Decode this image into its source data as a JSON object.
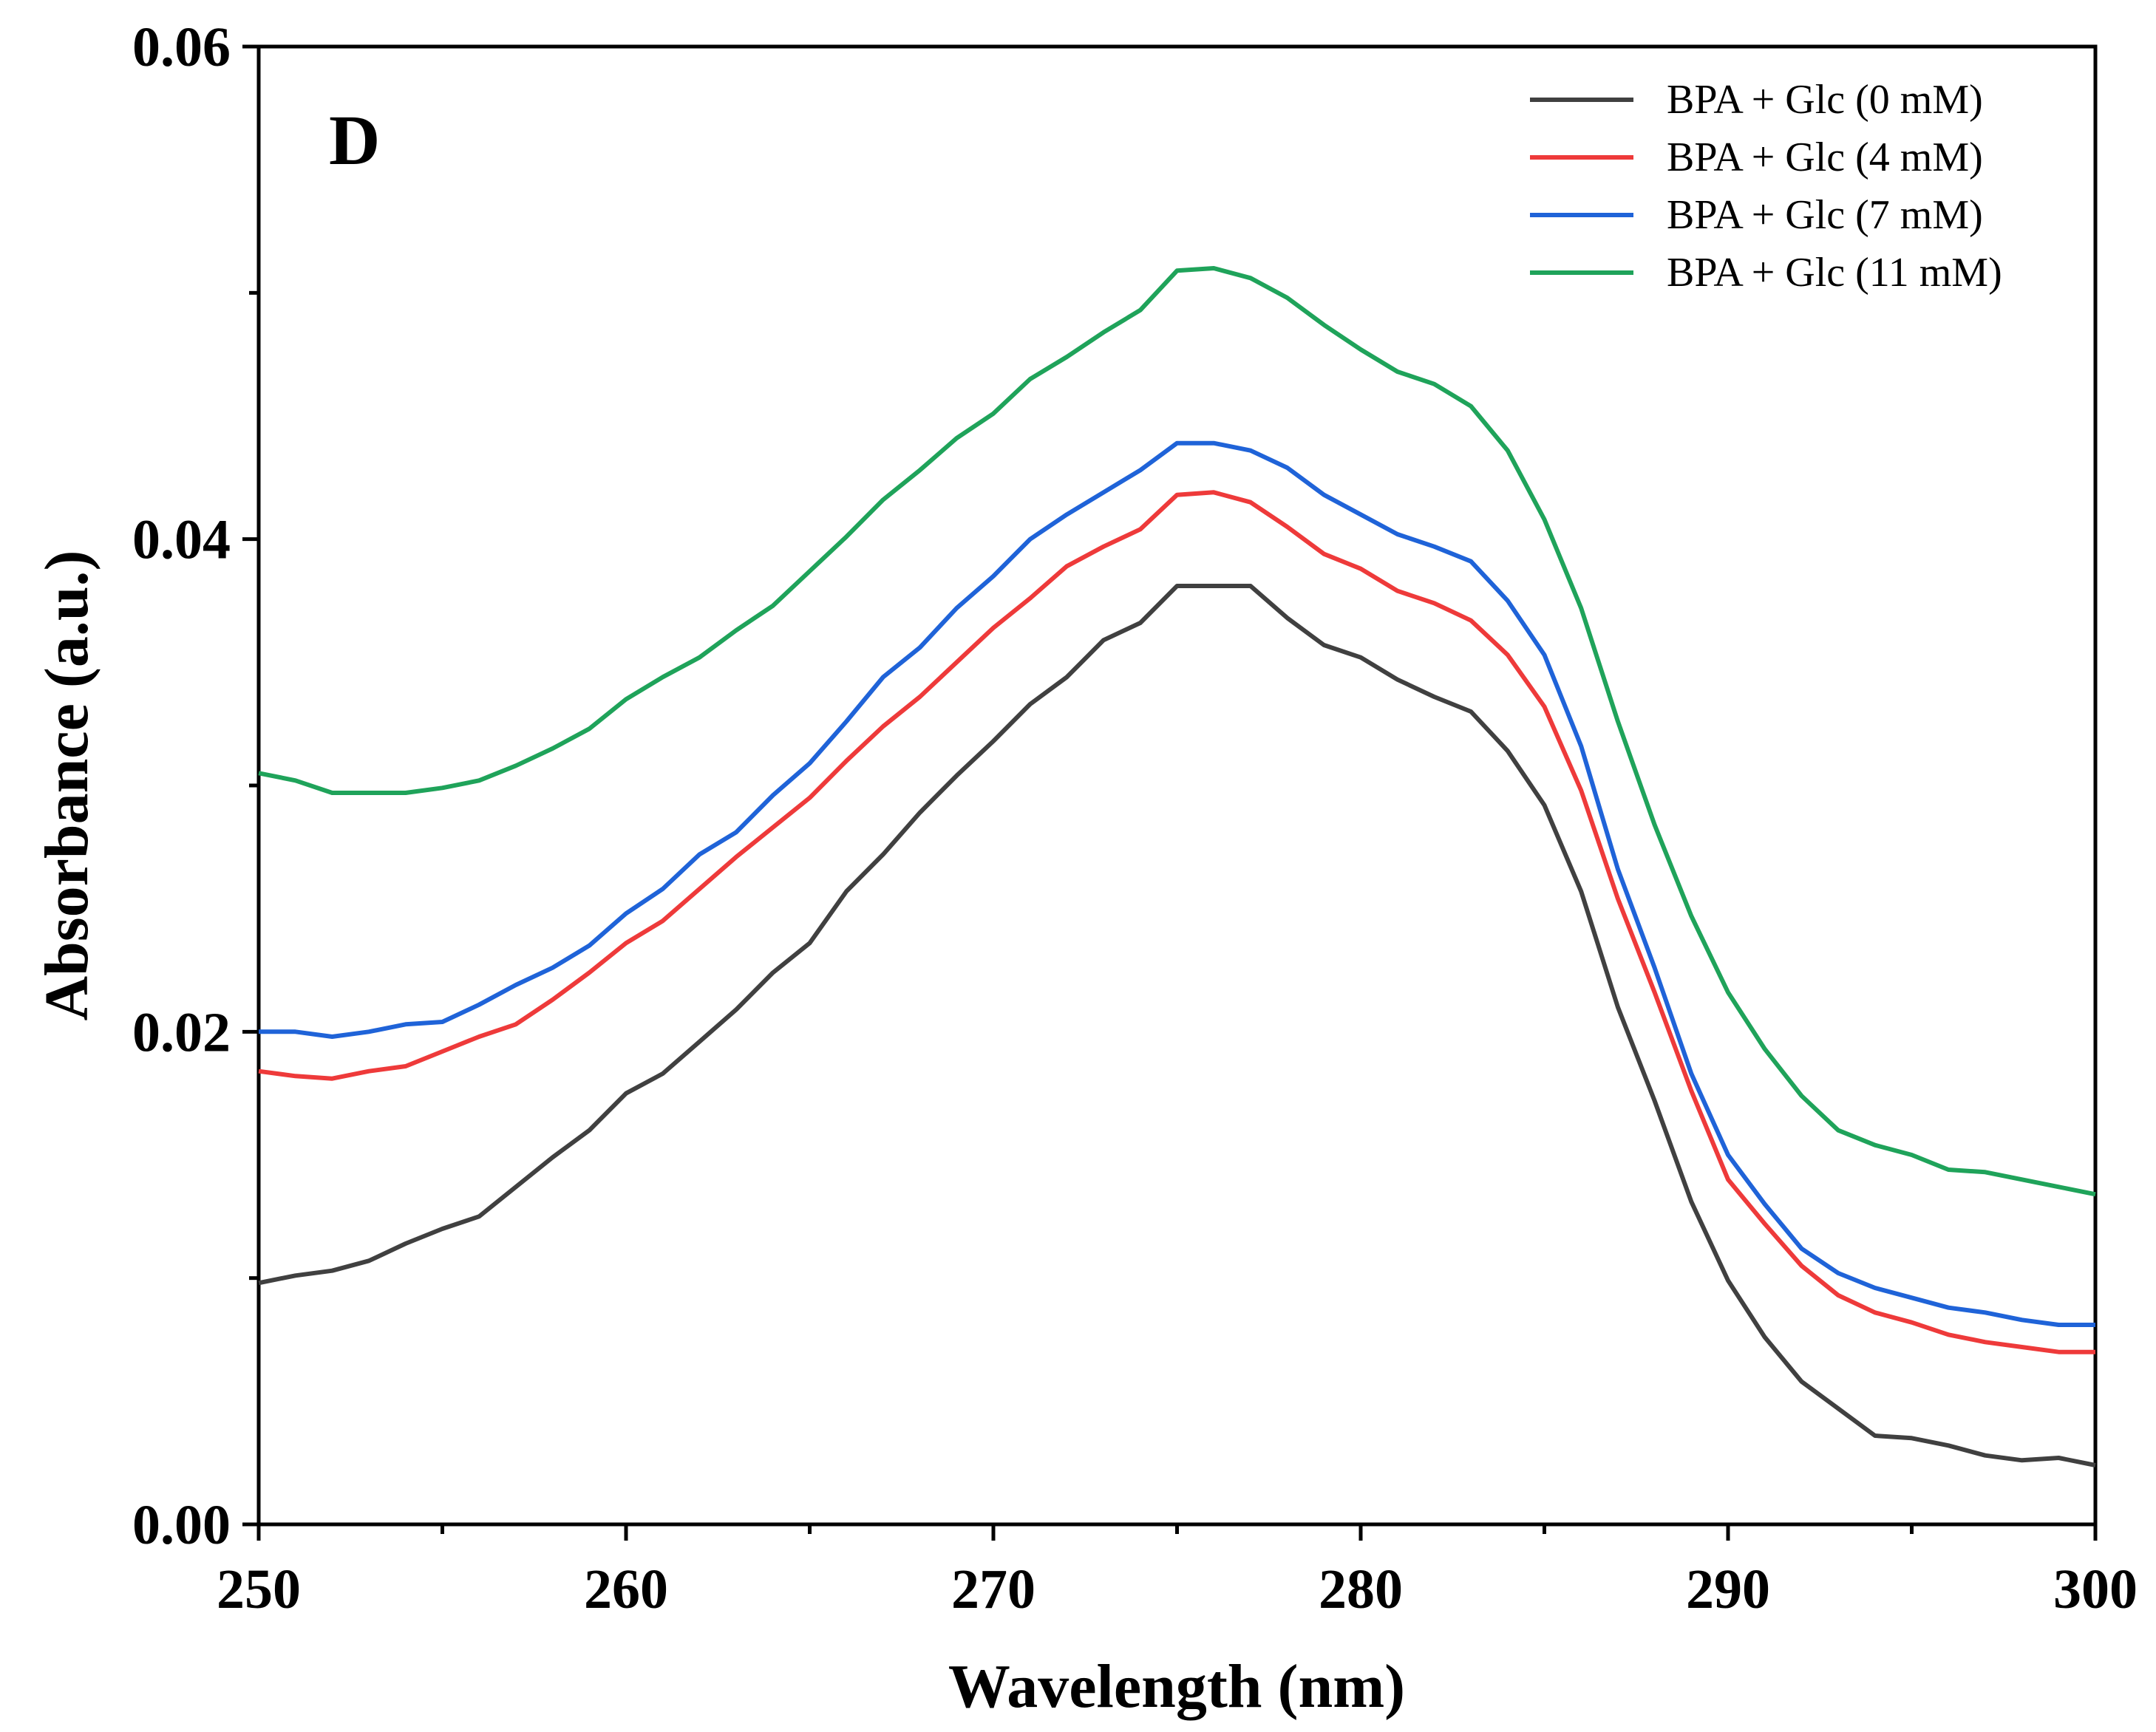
{
  "chart_data": {
    "type": "line",
    "panel_label": "D",
    "xlabel": "Wavelength (nm)",
    "ylabel": "Absorbance (a.u.)",
    "xlim": [
      250,
      300
    ],
    "ylim": [
      0.0,
      0.06
    ],
    "x_ticks": [
      250,
      260,
      270,
      280,
      290,
      300
    ],
    "x_tick_labels": [
      "250",
      "260",
      "270",
      "280",
      "290",
      "300"
    ],
    "y_ticks": [
      0.0,
      0.02,
      0.04,
      0.06
    ],
    "y_tick_labels": [
      "0.00",
      "0.02",
      "0.04",
      "0.06"
    ],
    "grid": false,
    "legend_position": "top-right",
    "x": [
      250,
      251,
      252,
      253,
      254,
      255,
      256,
      257,
      258,
      259,
      260,
      261,
      262,
      263,
      264,
      265,
      266,
      267,
      268,
      269,
      270,
      271,
      272,
      273,
      274,
      275,
      276,
      277,
      278,
      279,
      280,
      281,
      282,
      283,
      284,
      285,
      286,
      287,
      288,
      289,
      290,
      291,
      292,
      293,
      294,
      295,
      296,
      297,
      298,
      299,
      300
    ],
    "series": [
      {
        "name": "BPA + Glc (0 mM)",
        "color": "#404040",
        "values": [
          0.0098,
          0.0101,
          0.0103,
          0.0107,
          0.0114,
          0.012,
          0.0125,
          0.0137,
          0.0149,
          0.016,
          0.0175,
          0.0183,
          0.0196,
          0.0209,
          0.0224,
          0.0236,
          0.0257,
          0.0272,
          0.0289,
          0.0304,
          0.0318,
          0.0333,
          0.0344,
          0.0359,
          0.0366,
          0.0381,
          0.0381,
          0.0381,
          0.0368,
          0.0357,
          0.0352,
          0.0343,
          0.0336,
          0.033,
          0.0314,
          0.0292,
          0.0257,
          0.021,
          0.0172,
          0.0131,
          0.0099,
          0.0076,
          0.0058,
          0.0047,
          0.0036,
          0.0035,
          0.0032,
          0.0028,
          0.0026,
          0.0027,
          0.0024
        ]
      },
      {
        "name": "BPA + Glc (4 mM)",
        "color": "#ee3a3a",
        "values": [
          0.0184,
          0.0182,
          0.0181,
          0.0184,
          0.0186,
          0.0192,
          0.0198,
          0.0203,
          0.0213,
          0.0224,
          0.0236,
          0.0245,
          0.0258,
          0.0271,
          0.0283,
          0.0295,
          0.031,
          0.0324,
          0.0336,
          0.035,
          0.0364,
          0.0376,
          0.0389,
          0.0397,
          0.0404,
          0.0418,
          0.0419,
          0.0415,
          0.0405,
          0.0394,
          0.0388,
          0.0379,
          0.0374,
          0.0367,
          0.0353,
          0.0332,
          0.0298,
          0.0254,
          0.0216,
          0.0176,
          0.014,
          0.0122,
          0.0105,
          0.0093,
          0.0086,
          0.0082,
          0.0077,
          0.0074,
          0.0072,
          0.007,
          0.007
        ]
      },
      {
        "name": "BPA + Glc (7 mM)",
        "color": "#1f63d8",
        "values": [
          0.02,
          0.02,
          0.0198,
          0.02,
          0.0203,
          0.0204,
          0.0211,
          0.0219,
          0.0226,
          0.0235,
          0.0248,
          0.0258,
          0.0272,
          0.0281,
          0.0296,
          0.0309,
          0.0326,
          0.0344,
          0.0356,
          0.0372,
          0.0385,
          0.04,
          0.041,
          0.0419,
          0.0428,
          0.0439,
          0.0439,
          0.0436,
          0.0429,
          0.0418,
          0.041,
          0.0402,
          0.0397,
          0.0391,
          0.0375,
          0.0353,
          0.0316,
          0.0266,
          0.0226,
          0.0183,
          0.015,
          0.013,
          0.0112,
          0.0102,
          0.0096,
          0.0092,
          0.0088,
          0.0086,
          0.0083,
          0.0081,
          0.0081
        ]
      },
      {
        "name": "BPA + Glc (11 mM)",
        "color": "#1fa35a",
        "values": [
          0.0305,
          0.0302,
          0.0297,
          0.0297,
          0.0297,
          0.0299,
          0.0302,
          0.0308,
          0.0315,
          0.0323,
          0.0335,
          0.0344,
          0.0352,
          0.0363,
          0.0373,
          0.0387,
          0.0401,
          0.0416,
          0.0428,
          0.0441,
          0.0451,
          0.0465,
          0.0474,
          0.0484,
          0.0493,
          0.0509,
          0.051,
          0.0506,
          0.0498,
          0.0487,
          0.0477,
          0.0468,
          0.0463,
          0.0454,
          0.0436,
          0.0408,
          0.0372,
          0.0326,
          0.0284,
          0.0247,
          0.0216,
          0.0193,
          0.0174,
          0.016,
          0.0154,
          0.015,
          0.0144,
          0.0143,
          0.014,
          0.0137,
          0.0134
        ]
      }
    ]
  }
}
